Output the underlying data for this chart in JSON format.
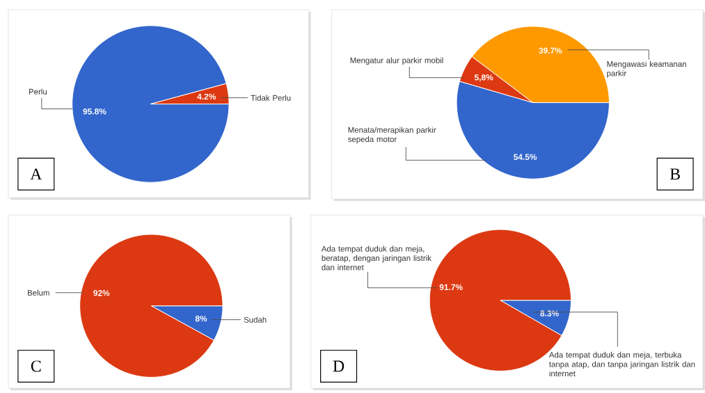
{
  "chart_data": [
    {
      "type": "pie",
      "title": "A",
      "categories": [
        "Perlu",
        "Tidak Perlu"
      ],
      "values": [
        95.8,
        4.2
      ],
      "colors": [
        "#3366cc",
        "#dc3912"
      ],
      "value_labels": [
        "95.8%",
        "4.2%"
      ]
    },
    {
      "type": "pie",
      "title": "B",
      "categories": [
        "Menata/merapikan parkir sepeda motor",
        "Mengatur alur parkir mobil",
        "Mengawasi keamanan parkir"
      ],
      "values": [
        54.5,
        5.8,
        39.7
      ],
      "colors": [
        "#3366cc",
        "#dc3912",
        "#ff9900"
      ],
      "value_labels": [
        "54.5%",
        "5,8%",
        "39.7%"
      ]
    },
    {
      "type": "pie",
      "title": "C",
      "categories": [
        "Sudah",
        "Belum"
      ],
      "values": [
        8,
        92
      ],
      "colors": [
        "#3366cc",
        "#dc3912"
      ],
      "value_labels": [
        "8%",
        "92%"
      ]
    },
    {
      "type": "pie",
      "title": "D",
      "categories": [
        "Ada tempat duduk dan meja, terbuka tanpa atap, dan tanpa jaringan listrik dan internet",
        "Ada tempat duduk dan meja, beratap, dengan jaringan listrik dan internet"
      ],
      "values": [
        8.3,
        91.7
      ],
      "colors": [
        "#3366cc",
        "#dc3912"
      ],
      "value_labels": [
        "8.3%",
        "91.7%"
      ]
    }
  ]
}
